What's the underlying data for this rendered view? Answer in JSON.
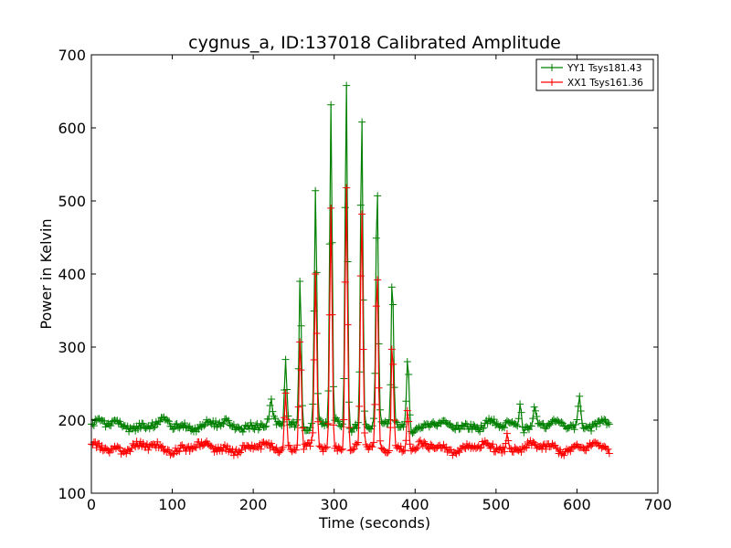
{
  "chart_data": {
    "type": "line",
    "title": "cygnus_a, ID:137018 Calibrated Amplitude",
    "xlabel": "Time (seconds)",
    "ylabel": "Power in Kelvin",
    "xlim": [
      0,
      700
    ],
    "ylim": [
      100,
      700
    ],
    "xticks": [
      0,
      100,
      200,
      300,
      400,
      500,
      600,
      700
    ],
    "yticks": [
      100,
      200,
      300,
      400,
      500,
      600,
      700
    ],
    "grid": false,
    "legend_position": "top-right",
    "marker": "plus",
    "x_range": [
      0,
      640
    ],
    "series": [
      {
        "name": "YY1 Tsys181.43",
        "color": "#008000",
        "baseline": 193,
        "peaks": [
          {
            "x": 222,
            "y": 220
          },
          {
            "x": 240,
            "y": 283
          },
          {
            "x": 258,
            "y": 390
          },
          {
            "x": 277,
            "y": 514
          },
          {
            "x": 296,
            "y": 627
          },
          {
            "x": 315,
            "y": 658
          },
          {
            "x": 334,
            "y": 608
          },
          {
            "x": 353,
            "y": 507
          },
          {
            "x": 372,
            "y": 382
          },
          {
            "x": 391,
            "y": 280
          },
          {
            "x": 530,
            "y": 222
          },
          {
            "x": 548,
            "y": 218
          },
          {
            "x": 603,
            "y": 232
          }
        ]
      },
      {
        "name": "XX1 Tsys161.36",
        "color": "#ff0000",
        "baseline": 162,
        "peaks": [
          {
            "x": 240,
            "y": 237
          },
          {
            "x": 258,
            "y": 307
          },
          {
            "x": 277,
            "y": 400
          },
          {
            "x": 296,
            "y": 488
          },
          {
            "x": 315,
            "y": 518
          },
          {
            "x": 334,
            "y": 482
          },
          {
            "x": 353,
            "y": 392
          },
          {
            "x": 372,
            "y": 297
          },
          {
            "x": 391,
            "y": 213
          },
          {
            "x": 514,
            "y": 180
          }
        ]
      }
    ]
  }
}
